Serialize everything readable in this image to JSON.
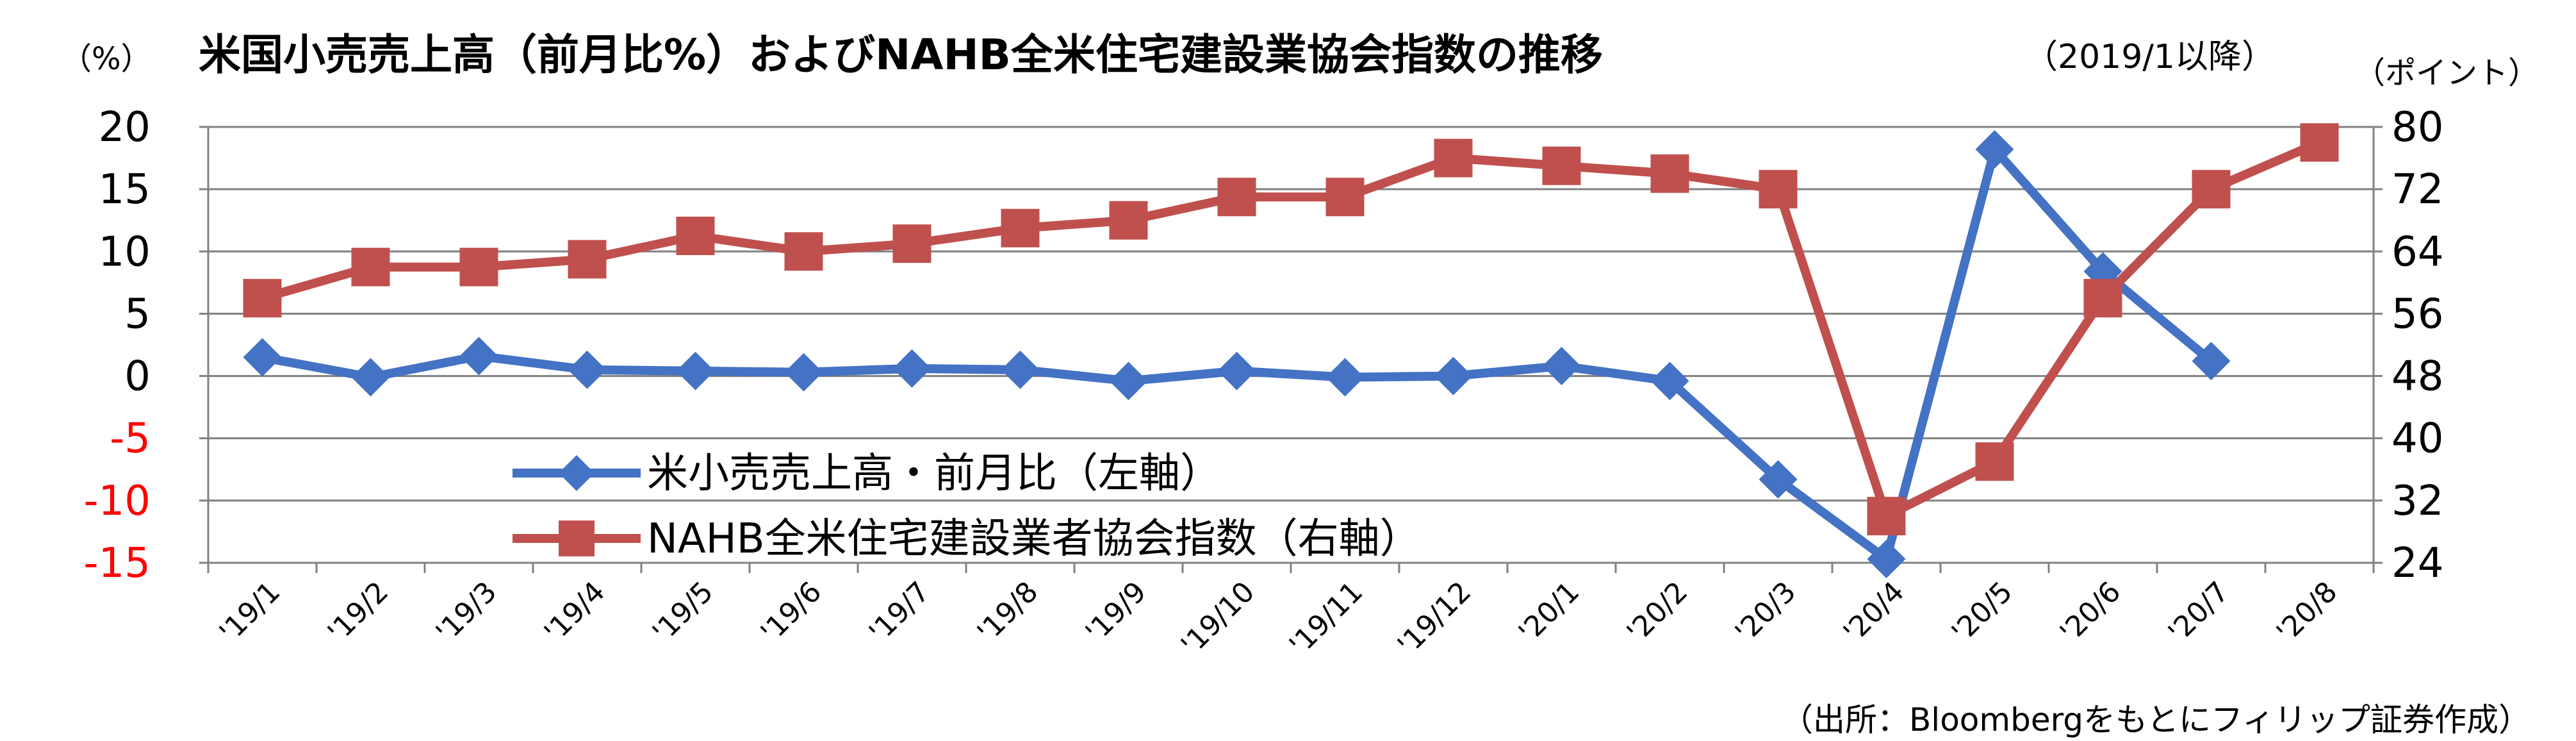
{
  "chart_data": {
    "type": "line",
    "title": "米国小売売上高（前月比%）およびNAHB全米住宅建設業協会指数の推移",
    "subtitle": "（2019/1以降）",
    "left_unit": "（%）",
    "right_unit": "（ポイント）",
    "categories": [
      "'19/1",
      "'19/2",
      "'19/3",
      "'19/4",
      "'19/5",
      "'19/6",
      "'19/7",
      "'19/8",
      "'19/9",
      "'19/10",
      "'19/11",
      "'19/12",
      "'20/1",
      "'20/2",
      "'20/3",
      "'20/4",
      "'20/5",
      "'20/6",
      "'20/7",
      "'20/8"
    ],
    "y_left": {
      "min": -15,
      "max": 20,
      "step": 5,
      "ticks": [
        "20",
        "15",
        "10",
        "5",
        "0",
        "-5",
        "-10",
        "-15"
      ],
      "negative_color": "#ff0000"
    },
    "y_right": {
      "min": 24,
      "max": 80,
      "step": 8,
      "ticks": [
        "80",
        "72",
        "64",
        "56",
        "48",
        "40",
        "32",
        "24"
      ]
    },
    "series": [
      {
        "name": "米小売売上高・前月比（左軸）",
        "axis": "left",
        "color": "#4472c4",
        "marker": "diamond",
        "values": [
          1.5,
          -0.1,
          1.6,
          0.5,
          0.4,
          0.3,
          0.6,
          0.5,
          -0.4,
          0.4,
          -0.1,
          0.0,
          0.8,
          -0.4,
          -8.3,
          -14.7,
          18.2,
          8.4,
          1.2,
          null
        ]
      },
      {
        "name": "NAHB全米住宅建設業者協会指数（右軸）",
        "axis": "right",
        "color": "#c0504d",
        "marker": "square",
        "values": [
          58,
          62,
          62,
          63,
          66,
          64,
          65,
          67,
          68,
          71,
          71,
          76,
          75,
          74,
          72,
          30,
          37,
          58,
          72,
          78
        ]
      }
    ],
    "grid": true,
    "legend_position": "bottom-left"
  },
  "source_note": "（出所：Bloombergをもとにフィリップ証券作成）"
}
